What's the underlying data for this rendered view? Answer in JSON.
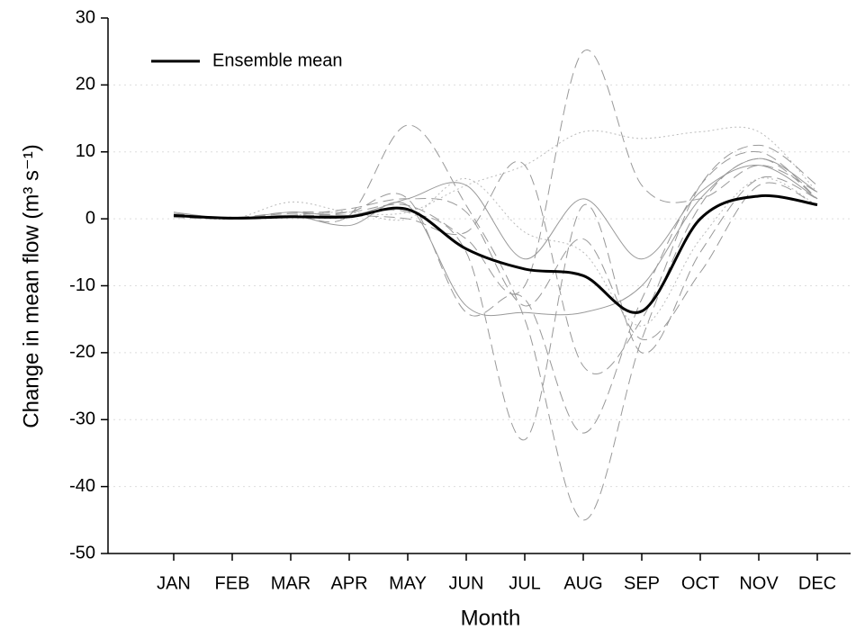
{
  "chart_data": {
    "type": "line",
    "xlabel": "Month",
    "ylabel": "Change in mean flow (m³ s⁻¹)",
    "categories": [
      "JAN",
      "FEB",
      "MAR",
      "APR",
      "MAY",
      "JUN",
      "JUL",
      "AUG",
      "SEP",
      "OCT",
      "NOV",
      "DEC"
    ],
    "ylim": [
      -50,
      30
    ],
    "yticks": [
      -50,
      -40,
      -30,
      -20,
      -10,
      0,
      10,
      20,
      30
    ],
    "grid": true,
    "legend": "upper left",
    "series": [
      {
        "color": "#999999",
        "dash": "dashed",
        "values": [
          0.5,
          0,
          0.5,
          0.5,
          14,
          2,
          -15,
          -45,
          -18,
          2,
          9,
          3
        ]
      },
      {
        "color": "#999999",
        "dash": "dashed",
        "values": [
          0.8,
          0.2,
          1,
          1,
          2,
          -3,
          -10,
          25,
          5,
          3,
          8,
          4
        ]
      },
      {
        "color": "#999999",
        "dash": "dashed",
        "values": [
          0.3,
          0,
          0.5,
          0.5,
          1,
          -5,
          -33,
          2,
          -20,
          -5,
          6,
          3
        ]
      },
      {
        "color": "#999999",
        "dash": "dashed",
        "values": [
          0.5,
          0,
          0.3,
          1,
          3,
          -14,
          -12,
          -32,
          -12,
          5,
          10,
          3
        ]
      },
      {
        "color": "#bbbbbb",
        "dash": "dotted",
        "values": [
          0.5,
          0,
          2.5,
          1,
          1,
          5,
          8,
          13,
          12,
          13,
          13,
          4
        ]
      },
      {
        "color": "#999999",
        "dash": "solid",
        "values": [
          0.5,
          0,
          1,
          0.5,
          3,
          5,
          -6,
          3,
          -6,
          4,
          8,
          3
        ]
      },
      {
        "color": "#999999",
        "dash": "solid",
        "values": [
          1,
          0,
          0.5,
          -1,
          2,
          -13,
          -14,
          -14,
          -10,
          3,
          9,
          4
        ]
      },
      {
        "color": "#999999",
        "dash": "dashed",
        "values": [
          0.2,
          0,
          0.8,
          0.5,
          0,
          -2,
          8,
          -22,
          -15,
          5,
          11,
          5
        ]
      },
      {
        "color": "#bbbbbb",
        "dash": "dotted",
        "values": [
          0.5,
          0,
          0.5,
          1,
          0,
          6,
          -2,
          -5,
          -16,
          -3,
          6,
          2
        ]
      },
      {
        "color": "#999999",
        "dash": "dashed",
        "values": [
          0.5,
          0.1,
          0.5,
          1.5,
          3,
          1,
          -13,
          -3,
          -18,
          -8,
          5,
          2
        ]
      },
      {
        "name": "Ensemble mean",
        "color": "#000000",
        "dash": "solid",
        "width": 3,
        "values": [
          0.5,
          0.1,
          0.3,
          0.3,
          1.4,
          -4.5,
          -7.5,
          -8.5,
          -13.8,
          0,
          3.4,
          2.1
        ]
      }
    ]
  }
}
